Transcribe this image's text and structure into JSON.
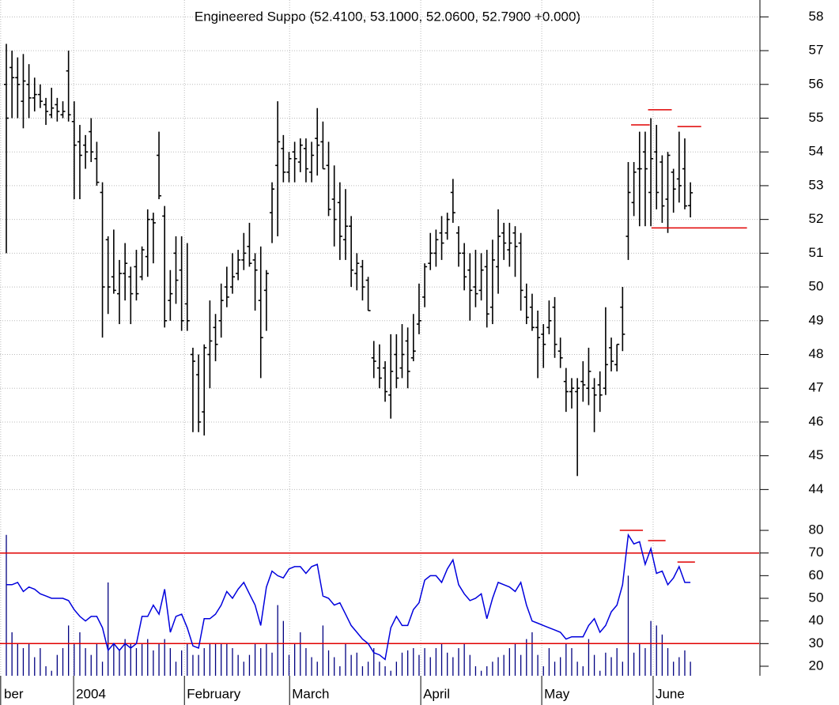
{
  "chart_data": [
    {
      "type": "ohlc",
      "title": "Engineered Suppo (52.4100, 53.1000, 52.0600, 52.7900 +0.000)",
      "color": "#000000",
      "open": [
        56,
        56.5,
        56.2,
        55.5,
        56,
        55.6,
        55.7,
        55.4,
        55.1,
        55.4,
        55.1,
        56.4,
        54.9,
        54.3,
        54.2,
        54.6,
        53.8,
        52.8,
        51.4,
        50.3,
        49.8,
        50.4,
        50.3,
        50.6,
        50.3,
        50.9,
        52,
        53.9,
        52.1,
        49.6,
        51,
        50.5,
        49.5,
        48,
        47.4,
        46.3,
        48,
        48.8,
        49,
        50,
        50,
        50.4,
        50.8,
        51.2,
        50.8,
        49.6,
        49.9,
        52.2,
        53.6,
        54.1,
        53.4,
        54,
        53.7,
        54.1,
        53.4,
        54.4,
        54.3,
        53.6,
        52.6,
        52.5,
        51.4,
        51.8,
        50.4,
        50.6,
        50.2,
        47.9,
        47.6,
        47.6,
        46.8,
        48,
        47.6,
        48.4,
        47.9,
        48.9,
        49.7,
        50.7,
        51,
        51.6,
        51.6,
        52.8,
        51.6,
        51,
        50.5,
        50,
        49.9,
        50.6,
        49.4,
        50.6,
        51.6,
        51.1,
        51.6,
        51.3,
        49.7,
        49.4,
        48.8,
        48.6,
        48.8,
        49.4,
        48.1,
        47.2,
        46.9,
        46.9,
        47.2,
        47,
        47,
        47.1,
        47,
        48.2,
        47.7,
        49.4,
        51.5,
        52.5,
        53.5,
        54,
        52.8,
        54,
        53.7,
        52.6,
        53.4,
        53.2,
        53.5,
        52.41
      ],
      "high": [
        57.2,
        57,
        56.8,
        56.9,
        56.6,
        56.2,
        56,
        55.6,
        55.9,
        55.6,
        55.5,
        57,
        55.5,
        54.8,
        54.5,
        55,
        54.3,
        53.1,
        51.5,
        51.7,
        50.8,
        51.3,
        50.6,
        51.1,
        51.2,
        52.3,
        52.2,
        54.6,
        52.4,
        50.5,
        51.5,
        51.5,
        51.3,
        48.2,
        48,
        48.3,
        49.6,
        49.2,
        50.1,
        50.6,
        51,
        51.1,
        51.6,
        51.9,
        51,
        51.2,
        50.5,
        53.1,
        55.5,
        54.5,
        54,
        54.3,
        54.4,
        54.4,
        54.3,
        55.3,
        54.9,
        54.3,
        53.6,
        53.1,
        52.9,
        52.1,
        51,
        50.8,
        50.3,
        48.4,
        48.3,
        47.8,
        48.6,
        48.6,
        48.9,
        48.8,
        49.2,
        50.1,
        50.7,
        51.6,
        51.7,
        52.1,
        52.2,
        53.2,
        51.8,
        51.3,
        51,
        51.1,
        51,
        51.1,
        51.4,
        52.3,
        51.9,
        51.9,
        51.8,
        51.6,
        50.1,
        49.8,
        49.3,
        48.9,
        49.6,
        49.7,
        48.5,
        47.6,
        47.3,
        47.3,
        47.8,
        48.2,
        47.3,
        47.5,
        49.4,
        48.5,
        48.3,
        50,
        53.7,
        53.7,
        54.6,
        54.6,
        55,
        54.8,
        53.9,
        54,
        53.5,
        54.6,
        54.4,
        53.1
      ],
      "low": [
        51,
        55,
        55,
        54.7,
        55,
        55.2,
        55.3,
        54.8,
        55,
        54.9,
        55,
        54.9,
        52.6,
        52.6,
        53.5,
        53.7,
        53,
        48.5,
        49.2,
        49.8,
        48.9,
        49.6,
        48.9,
        49.6,
        50.2,
        50.3,
        50.7,
        52.6,
        48.8,
        49,
        49.5,
        48.7,
        48.7,
        45.7,
        45.7,
        45.6,
        47,
        47.8,
        48.5,
        49.4,
        49.8,
        50.2,
        50.5,
        50.6,
        49.3,
        47.3,
        48.7,
        51.3,
        51.5,
        53.1,
        53.1,
        53.1,
        53.4,
        53.1,
        53.1,
        53.3,
        53.5,
        52.1,
        51.2,
        50.8,
        50.8,
        50,
        49.9,
        49.6,
        49.3,
        47.3,
        47,
        46.6,
        46.1,
        47,
        47.3,
        47,
        47.8,
        48.6,
        49.4,
        50.5,
        50.6,
        50.8,
        51.4,
        51.9,
        50.6,
        49.9,
        49,
        49.4,
        49.6,
        48.8,
        48.9,
        49.8,
        50.8,
        50.6,
        50.3,
        49.3,
        48.9,
        48.7,
        47.3,
        47.6,
        48.6,
        47.9,
        47.6,
        46.3,
        46.4,
        44.4,
        46.6,
        46.5,
        45.7,
        46.3,
        46.8,
        47.5,
        47.5,
        48.1,
        50.8,
        52.1,
        51.8,
        51.8,
        51.8,
        52.3,
        51.9,
        51.6,
        52.2,
        52.5,
        52.3,
        52.06
      ],
      "close": [
        55,
        56.2,
        56,
        56.1,
        55.6,
        55.7,
        55.5,
        55.2,
        55.3,
        55.2,
        55.2,
        55.1,
        54.2,
        53.9,
        54,
        54,
        53.1,
        50,
        50,
        49.9,
        50.4,
        50.7,
        49.8,
        49.8,
        51.1,
        52,
        51.9,
        52.7,
        49,
        49.8,
        50.2,
        49,
        49,
        47.8,
        46,
        48.2,
        48.4,
        48.3,
        49.6,
        49.7,
        50.3,
        50.8,
        51,
        50.7,
        50.5,
        48.5,
        50.4,
        52.9,
        54.3,
        53.4,
        53.8,
        53.8,
        54.2,
        53.5,
        53.9,
        54.2,
        53.5,
        52.3,
        52,
        51.5,
        51.8,
        50.5,
        50.7,
        50,
        49.3,
        47.8,
        47.3,
        46.9,
        47.5,
        47.3,
        48,
        47.5,
        48.1,
        49,
        50.6,
        51,
        51.4,
        51.3,
        52,
        52.2,
        51,
        50.3,
        49.9,
        49.8,
        50.5,
        49.2,
        50.8,
        51.5,
        51.3,
        51.3,
        51.2,
        49.9,
        49.1,
        48.8,
        48.5,
        48.3,
        49,
        48.3,
        47.9,
        46.9,
        47,
        47,
        47.1,
        47.5,
        46.8,
        46.8,
        47.7,
        47.8,
        48.3,
        48.6,
        52.8,
        53.4,
        53.5,
        53.5,
        53.8,
        52.8,
        52.4,
        53.9,
        52.9,
        53,
        52.4,
        52.79
      ],
      "xlim": [
        -1.12,
        133.15
      ],
      "xticks": [
        {
          "value": -1,
          "label": "ber"
        },
        {
          "value": 11.9,
          "label": "2004"
        },
        {
          "value": 31.5,
          "label": "February"
        },
        {
          "value": 50.1,
          "label": "March"
        },
        {
          "value": 73.3,
          "label": "April"
        },
        {
          "value": 94.7,
          "label": "May"
        },
        {
          "value": 114.4,
          "label": "June"
        }
      ],
      "ylim": [
        43.4,
        58.5
      ],
      "yticks": [
        44,
        45,
        46,
        47,
        48,
        49,
        50,
        51,
        52,
        53,
        54,
        55,
        56,
        57,
        58
      ],
      "grid": true,
      "annotations": [
        {
          "x": [
            110.5,
            113.8
          ],
          "y": 54.8,
          "color": "#e00000"
        },
        {
          "x": [
            113.5,
            117.7
          ],
          "y": 55.25,
          "color": "#e00000"
        },
        {
          "x": [
            118.7,
            122.9
          ],
          "y": 54.75,
          "color": "#e00000"
        },
        {
          "x": [
            114.1,
            131
          ],
          "y": 51.75,
          "color": "#e00000"
        }
      ]
    },
    {
      "type": "line",
      "color": "#0000dd",
      "values": [
        56,
        56,
        57,
        53,
        55,
        54,
        52,
        51,
        50,
        50,
        50,
        49,
        45,
        42,
        40,
        42,
        42,
        37,
        27,
        30,
        27,
        30,
        28,
        30,
        42,
        42,
        47,
        43,
        54,
        35,
        42,
        43,
        37,
        29,
        28,
        41,
        41,
        43,
        47,
        53,
        50,
        54,
        57,
        52,
        47,
        38,
        55,
        62,
        60,
        59,
        63,
        64,
        64,
        61,
        64,
        65,
        51,
        50,
        47,
        48,
        43,
        38,
        35,
        32,
        30,
        26,
        25,
        23,
        37,
        42,
        38,
        38,
        45,
        48,
        58,
        60,
        60,
        57,
        63,
        67,
        56,
        52,
        49,
        50,
        52,
        41,
        50,
        57,
        56,
        55,
        53,
        57,
        47,
        40,
        39,
        38,
        37,
        36,
        35,
        32,
        33,
        33,
        33,
        38,
        41,
        35,
        38,
        44,
        47,
        56,
        78,
        74,
        75,
        65,
        72,
        61,
        62,
        56,
        59,
        64,
        57,
        57
      ],
      "volume": [
        78,
        35,
        30,
        28,
        30,
        24,
        28,
        20,
        18,
        25,
        28,
        38,
        30,
        35,
        28,
        25,
        30,
        22,
        57,
        30,
        27,
        32,
        30,
        28,
        30,
        32,
        27,
        30,
        32,
        28,
        22,
        27,
        30,
        25,
        25,
        28,
        30,
        30,
        30,
        30,
        28,
        25,
        22,
        25,
        30,
        28,
        30,
        26,
        47,
        40,
        25,
        30,
        35,
        28,
        24,
        22,
        38,
        27,
        24,
        20,
        30,
        25,
        26,
        20,
        22,
        28,
        22,
        20,
        18,
        22,
        26,
        27,
        28,
        25,
        28,
        24,
        28,
        30,
        26,
        24,
        28,
        30,
        25,
        20,
        18,
        20,
        22,
        24,
        25,
        28,
        30,
        25,
        32,
        35,
        25,
        20,
        28,
        22,
        24,
        30,
        28,
        22,
        20,
        32,
        25,
        18,
        26,
        24,
        28,
        22,
        60,
        26,
        30,
        28,
        40,
        38,
        34,
        28,
        22,
        24,
        27,
        22
      ],
      "volume_color": "#000080",
      "ylim": [
        15.8,
        85.6
      ],
      "yticks": [
        20,
        30,
        40,
        50,
        60,
        70,
        80
      ],
      "levels": [
        70,
        30
      ],
      "level_color": "#e00000",
      "annotations": [
        {
          "x": [
            108.5,
            112.6
          ],
          "y": 80,
          "color": "#e00000"
        },
        {
          "x": [
            113.5,
            116.6
          ],
          "y": 75.5,
          "color": "#e00000"
        },
        {
          "x": [
            118.7,
            121.8
          ],
          "y": 66,
          "color": "#e00000"
        }
      ]
    }
  ]
}
